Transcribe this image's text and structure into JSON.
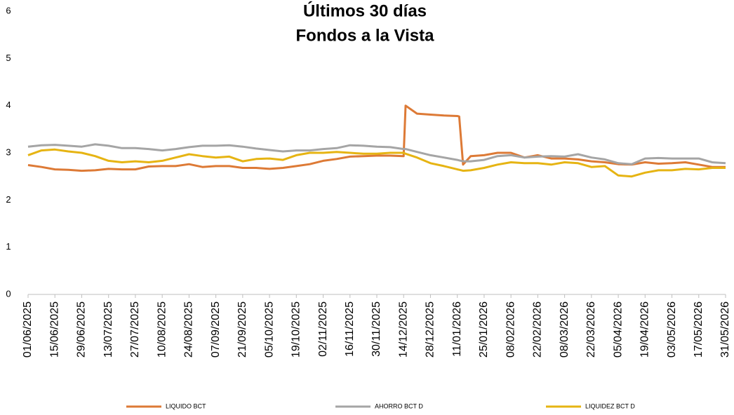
{
  "chart_data": {
    "type": "line",
    "title": "Últimos 30 días",
    "subtitle": "Fondos a la Vista",
    "x": [
      "01/06/2025",
      "08/06/2025",
      "15/06/2025",
      "22/06/2025",
      "29/06/2025",
      "06/07/2025",
      "13/07/2025",
      "20/07/2025",
      "27/07/2025",
      "03/08/2025",
      "10/08/2025",
      "17/08/2025",
      "24/08/2025",
      "31/08/2025",
      "07/09/2025",
      "14/09/2025",
      "21/09/2025",
      "28/09/2025",
      "05/10/2025",
      "12/10/2025",
      "19/10/2025",
      "26/10/2025",
      "02/11/2025",
      "09/11/2025",
      "16/11/2025",
      "23/11/2025",
      "30/11/2025",
      "07/12/2025",
      "14/12/2025",
      "15/12/2025",
      "21/12/2025",
      "28/12/2025",
      "04/01/2026",
      "11/01/2026",
      "12/01/2026",
      "14/01/2026",
      "18/01/2026",
      "25/01/2026",
      "01/02/2026",
      "08/02/2026",
      "15/02/2026",
      "22/02/2026",
      "01/03/2026",
      "08/03/2026",
      "15/03/2026",
      "22/03/2026",
      "29/03/2026",
      "05/04/2026",
      "12/04/2026",
      "19/04/2026",
      "26/04/2026",
      "03/05/2026",
      "10/05/2026",
      "17/05/2026",
      "24/05/2026",
      "31/05/2026"
    ],
    "series": [
      {
        "name": "LIQUIDO BCT",
        "color": "#dd7a36",
        "values": [
          2.74,
          2.7,
          2.65,
          2.64,
          2.62,
          2.63,
          2.66,
          2.65,
          2.65,
          2.71,
          2.72,
          2.72,
          2.76,
          2.7,
          2.72,
          2.72,
          2.68,
          2.68,
          2.66,
          2.68,
          2.72,
          2.76,
          2.83,
          2.87,
          2.92,
          2.93,
          2.94,
          2.94,
          2.93,
          4.0,
          3.83,
          3.81,
          3.79,
          3.78,
          3.77,
          2.75,
          2.93,
          2.95,
          3.0,
          3.0,
          2.9,
          2.95,
          2.88,
          2.88,
          2.86,
          2.82,
          2.8,
          2.76,
          2.75,
          2.8,
          2.77,
          2.78,
          2.8,
          2.75,
          2.7,
          2.7
        ]
      },
      {
        "name": "AHORRO BCT D",
        "color": "#a5a5a5",
        "values": [
          3.13,
          3.16,
          3.17,
          3.15,
          3.13,
          3.18,
          3.15,
          3.1,
          3.1,
          3.08,
          3.05,
          3.08,
          3.12,
          3.15,
          3.15,
          3.16,
          3.13,
          3.09,
          3.06,
          3.03,
          3.05,
          3.05,
          3.08,
          3.1,
          3.16,
          3.15,
          3.13,
          3.12,
          3.08,
          3.08,
          3.02,
          2.95,
          2.9,
          2.85,
          2.84,
          2.82,
          2.82,
          2.85,
          2.93,
          2.95,
          2.9,
          2.92,
          2.93,
          2.92,
          2.97,
          2.9,
          2.86,
          2.78,
          2.76,
          2.88,
          2.89,
          2.88,
          2.88,
          2.88,
          2.8,
          2.78
        ]
      },
      {
        "name": "LIQUIDEZ BCT D",
        "color": "#e6b413",
        "values": [
          2.95,
          3.05,
          3.07,
          3.03,
          3.0,
          2.93,
          2.83,
          2.8,
          2.82,
          2.8,
          2.83,
          2.9,
          2.97,
          2.93,
          2.9,
          2.92,
          2.82,
          2.87,
          2.88,
          2.85,
          2.95,
          3.0,
          3.0,
          3.02,
          3.0,
          2.98,
          2.98,
          3.0,
          3.0,
          2.98,
          2.9,
          2.78,
          2.72,
          2.65,
          2.64,
          2.62,
          2.63,
          2.68,
          2.75,
          2.8,
          2.78,
          2.78,
          2.75,
          2.8,
          2.78,
          2.7,
          2.72,
          2.52,
          2.5,
          2.58,
          2.63,
          2.63,
          2.66,
          2.65,
          2.68,
          2.68
        ]
      }
    ],
    "xlim": [
      "01/06/2025",
      "31/05/2026"
    ],
    "xticks": [
      "01/06/2025",
      "15/06/2025",
      "29/06/2025",
      "13/07/2025",
      "27/07/2025",
      "10/08/2025",
      "24/08/2025",
      "07/09/2025",
      "21/09/2025",
      "05/10/2025",
      "19/10/2025",
      "02/11/2025",
      "16/11/2025",
      "30/11/2025",
      "14/12/2025",
      "28/12/2025",
      "11/01/2026",
      "25/01/2026",
      "08/02/2026",
      "22/02/2026",
      "08/03/2026",
      "22/03/2026",
      "05/04/2026",
      "19/04/2026",
      "03/05/2026",
      "17/05/2026",
      "31/05/2026"
    ],
    "ylim": [
      0,
      6
    ],
    "yticks": [
      0,
      1,
      2,
      3,
      4,
      5,
      6
    ],
    "grid": false,
    "legend": "bottom"
  }
}
